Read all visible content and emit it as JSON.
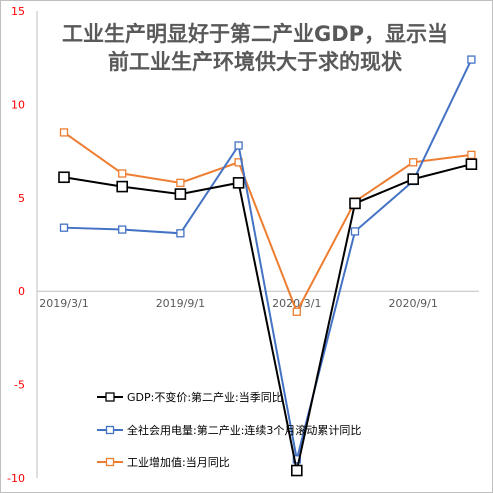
{
  "chart_data": {
    "type": "line",
    "title_lines": [
      "工业生产明显好于第二产业GDP，显示当",
      "前工业生产环境供大于求的现状"
    ],
    "xlabel": "",
    "ylabel": "",
    "ylim": [
      -10,
      15
    ],
    "y_ticks": [
      15,
      10,
      5,
      0,
      -5,
      -10
    ],
    "x_tick_labels": [
      "2019/3/1",
      "2019/9/1",
      "2020/3/1",
      "2020/9/1"
    ],
    "x_tick_positions": [
      0,
      2,
      4,
      6
    ],
    "x_count": 8,
    "grid": false,
    "legend_position": "bottom-left",
    "series": [
      {
        "name": "GDP:不变价:第二产业:当季同比",
        "color": "#000000",
        "values": [
          6.1,
          5.6,
          5.2,
          5.8,
          -9.6,
          4.7,
          6.0,
          6.8
        ]
      },
      {
        "name": "全社会用电量:第二产业:连续3个月滚动累计同比",
        "color": "#4472C4",
        "values": [
          3.4,
          3.3,
          3.1,
          7.8,
          -9.0,
          3.2,
          5.9,
          12.4
        ]
      },
      {
        "name": "工业增加值:当月同比",
        "color": "#ED7D31",
        "values": [
          8.5,
          6.3,
          5.8,
          6.9,
          -1.1,
          4.8,
          6.9,
          7.3
        ]
      }
    ],
    "colors": {
      "axis_labels": "#FF0000",
      "x_tick_text": "#595959",
      "title": "#595959"
    }
  }
}
